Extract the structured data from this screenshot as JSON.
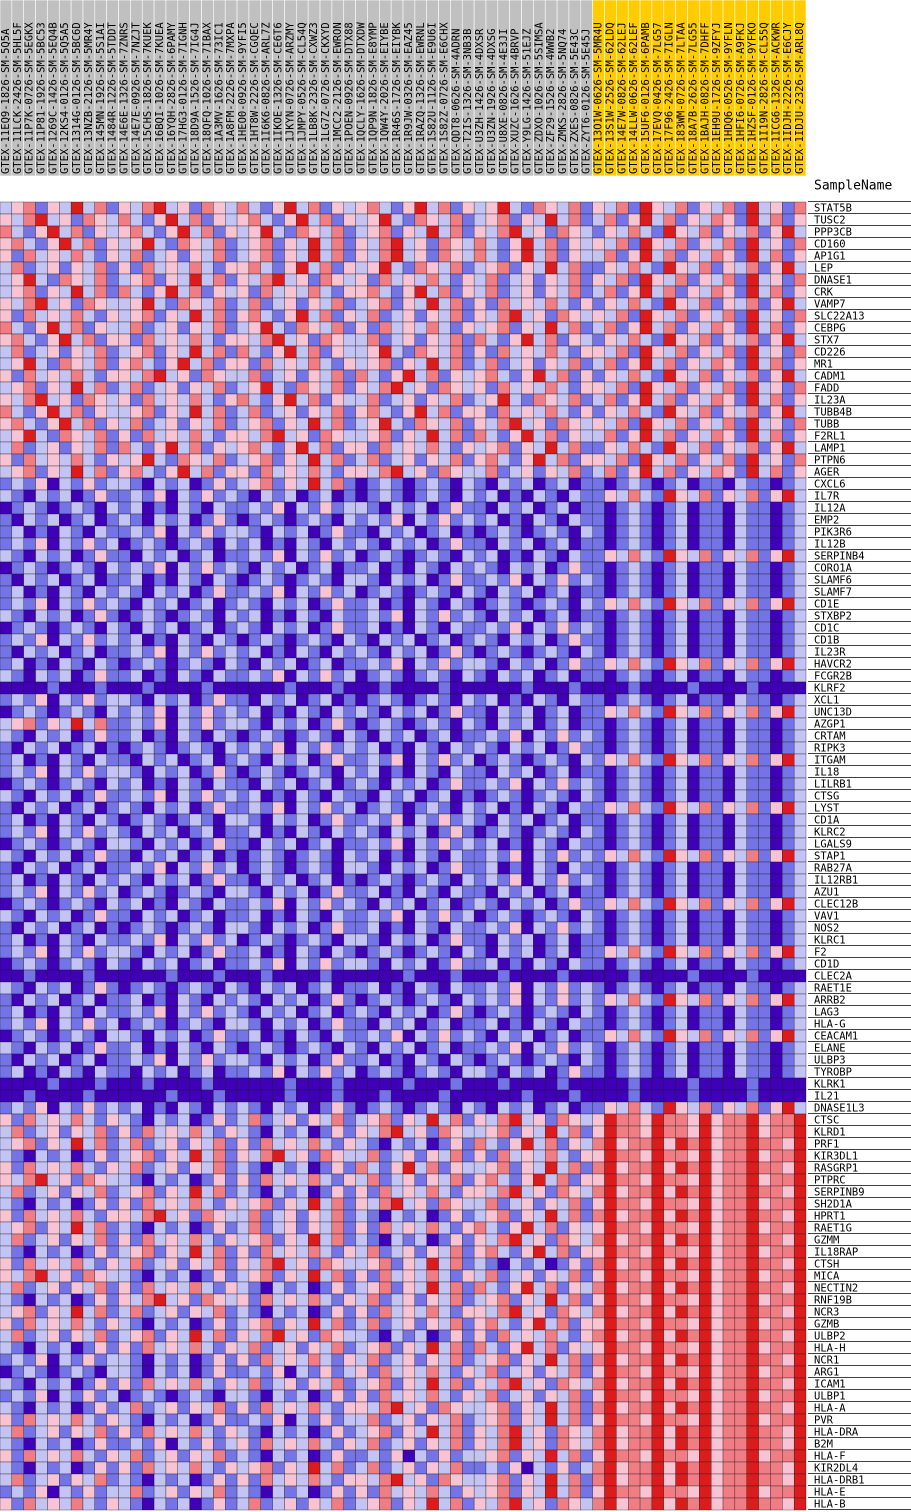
{
  "heatmap": {
    "type": "heatmap",
    "sample_axis_label": "SampleName",
    "colors": [
      "#3f00b8",
      "#7474e6",
      "#c4c4f4",
      "#f8c4d4",
      "#f07c84",
      "#dc1c1c"
    ],
    "group_colors": [
      "#c0c0c0",
      "#ffcc00"
    ],
    "samples": [
      "GTEX-11EQ9-1826-SM-5Q5A",
      "GTEX-11LCK-2426-SM-5HL5F",
      "GTEX-11P7K-0726-SM-5EGKX",
      "GTEX-11P81-1926-SM-5BC53",
      "GTEX-1269C-1426-SM-5EQ4B",
      "GTEX-12KS4-0126-SM-5Q5A5",
      "GTEX-1314G-0126-SM-5BC6D",
      "GTEX-13NZB-2126-SM-5MR4Y",
      "GTEX-145MN-1926-SM-5S1AI",
      "GTEX-1484R-1226-SM-5TDDT",
      "GTEX-14E6E-1326-SM-7ZNRS",
      "GTEX-14E7E-0926-SM-7NZJT",
      "GTEX-15CHS-1826-SM-7KUEK",
      "GTEX-16BQI-1026-SM-7KUEA",
      "GTEX-16YQH-2826-SM-6PAMY",
      "GTEX-17HG3-0126-SM-7IGNH",
      "GTEX-18D9A-1526-SM-7IG4J",
      "GTEX-18QFQ-1026-SM-7IBAX",
      "GTEX-1A3MV-1626-SM-73IC1",
      "GTEX-1A8FM-2226-SM-7MXPA",
      "GTEX-1HEO0-0926-SM-9YFI5",
      "GTEX-1HT8W-2226-SM-CGQEC",
      "GTEX-1I6K6-0826-SM-ARL7Z",
      "GTEX-1IKOE-1326-SM-CE6T6",
      "GTEX-1JKYN-0726-SM-ARZMY",
      "GTEX-1JMPY-0526-SM-CL54Q",
      "GTEX-1LB8K-2326-SM-CXWZ3",
      "GTEX-1LG7Z-0726-SM-CKXYD",
      "GTEX-1MCC2-2126-SM-EWRON",
      "GTEX-1POEN-0926-SM-DTX88",
      "GTEX-1QCLY-1626-SM-DTXDW",
      "GTEX-1QP9N-1826-SM-E8YMP",
      "GTEX-1QW4Y-2026-SM-EIYBE",
      "GTEX-1R46S-1726-SM-EIYBK",
      "GTEX-1R9JW-0326-SM-EAZ45",
      "GTEX-1RAZQ-1326-SM-EWRNL",
      "GTEX-1S82U-1126-SM-E9U6I",
      "GTEX-1S82Z-0726-SM-E6CHX",
      "GTEX-QDT8-0626-SM-4ADRN",
      "GTEX-T2IS-1326-SM-3NB3B",
      "GTEX-U3ZH-1426-SM-4DXSR",
      "GTEX-U3ZN-1926-SM-4DXSG",
      "GTEX-U8XE-0826-SM-4E3JI",
      "GTEX-XUZC-1626-SM-4BRVP",
      "GTEX-Y9LG-1426-SM-51EJZ",
      "GTEX-ZDXO-1026-SM-5SIMSA",
      "GTEX-ZF29-1526-SM-4WWB2",
      "GTEX-ZMKS-2826-SM-5NQ74",
      "GTEX-ZXES-0826-SM-5E43C",
      "GTEX-ZYT6-0126-SM-5E45J",
      "GTEX-13O1W-0626-SM-5MR4U",
      "GTEX-13S1W-2526-SM-62LDQ",
      "GTEX-14E7W-0826-SM-62LEJ",
      "GTEX-14LLW-0626-SM-62LEF",
      "GTEX-15UF6-0126-SM-6PAMB",
      "GTEX-17EVQ-0426-SM-7LG57",
      "GTEX-17F96-2426-SM-7IGLN",
      "GTEX-183WM-0726-SM-7LTAA",
      "GTEX-18A7B-2626-SM-7LG55",
      "GTEX-1BAJH-0826-SM-7DHFF",
      "GTEX-1EH9U-1726-SM-9ZFYJ",
      "GTEX-1HDQ6-0526-SM-9YFLN",
      "GTEX-1HFI6-0726-SM-A9FKJ",
      "GTEX-1HZSF-0126-SM-9YFKO",
      "GTEX-1I19N-2826-SM-CL55Q",
      "GTEX-1ICG6-1326-SM-ACKWR",
      "GTEX-1IDJH-2226-SM-E6CJY",
      "GTEX-1IDJU-2326-SM-ARL8Q"
    ],
    "sample_groups": [
      0,
      0,
      0,
      0,
      0,
      0,
      0,
      0,
      0,
      0,
      0,
      0,
      0,
      0,
      0,
      0,
      0,
      0,
      0,
      0,
      0,
      0,
      0,
      0,
      0,
      0,
      0,
      0,
      0,
      0,
      0,
      0,
      0,
      0,
      0,
      0,
      0,
      0,
      0,
      0,
      0,
      0,
      0,
      0,
      0,
      0,
      0,
      0,
      0,
      0,
      1,
      1,
      1,
      1,
      1,
      1,
      1,
      1,
      1,
      1,
      1,
      1,
      1,
      1,
      1,
      1,
      1,
      1
    ],
    "genes": [
      "STAT5B",
      "TUSC2",
      "PPP3CB",
      "CD160",
      "AP1G1",
      "LEP",
      "DNASE1",
      "CRK",
      "VAMP7",
      "SLC22A13",
      "CEBPG",
      "STX7",
      "CD226",
      "MR1",
      "CADM1",
      "FADD",
      "IL23A",
      "TUBB4B",
      "TUBB",
      "F2RL1",
      "LAMP1",
      "PTPN6",
      "AGER",
      "CXCL6",
      "IL7R",
      "IL12A",
      "EMP2",
      "PIK3R6",
      "IL12B",
      "SERPINB4",
      "CORO1A",
      "SLAMF6",
      "SLAMF7",
      "CD1E",
      "STXBP2",
      "CD1C",
      "CD1B",
      "IL23R",
      "HAVCR2",
      "FCGR2B",
      "KLRF2",
      "XCL1",
      "UNC13D",
      "AZGP1",
      "CRTAM",
      "RIPK3",
      "ITGAM",
      "IL18",
      "LILRB1",
      "CTSG",
      "LYST",
      "CD1A",
      "KLRC2",
      "LGALS9",
      "STAP1",
      "RAB27A",
      "IL12RB1",
      "AZU1",
      "CLEC12B",
      "VAV1",
      "NOS2",
      "KLRC1",
      "F2",
      "CD1D",
      "CLEC2A",
      "RAET1E",
      "ARRB2",
      "LAG3",
      "HLA-G",
      "CEACAM1",
      "ELANE",
      "ULBP3",
      "TYROBP",
      "KLRK1",
      "IL21",
      "DNASE1L3",
      "CTSC",
      "KLRD1",
      "PRF1",
      "KIR3DL1",
      "RASGRP1",
      "PTPRC",
      "SERPINB9",
      "SH2D1A",
      "HPRT1",
      "RAET1G",
      "GZMM",
      "IL18RAP",
      "CTSH",
      "MICA",
      "NECTIN2",
      "RNF19B",
      "NCR3",
      "GZMB",
      "ULBP2",
      "HLA-H",
      "NCR1",
      "ARG1",
      "ICAM1",
      "ULBP1",
      "HLA-A",
      "PVR",
      "HLA-DRA",
      "B2M",
      "HLA-F",
      "KIR2DL4",
      "HLA-DRB1",
      "HLA-E",
      "HLA-B"
    ],
    "levels": [
      "23413252413245231432421352413234213524132352143241324153241324152314",
      "32452314324213524132342135241323521432412341325241241352413243152413",
      "42135241323421352413235214324123413252413245231432132421532413241352",
      "34213524132352143241234132524132452314324213524132324153241324152314",
      "31423242132412313241234132524132452314324213524132241352413243152413",
      "24123132413142324213342135241323521432412341325241132421532413241352",
      "23521432412341325241324523143231423242132412313241324153241324152314",
      "23413252414213524132314232421334213524132412313241241352413243152413",
      "32452314322352143241241231324123413252413142324213132421532413241352",
      "31423242132341325241342135241324123132413245231432324153241324152314",
      "42135241322412313241235214324131423242132341325241241352413243152413",
      "34213524133142324213324523143224123132414213524132132421532413241352",
      "24123132412341325241421352413223521432413142324213324153241324152314",
      "23521432413421352413314232421323413252412412313241241352413243152413",
      "31423242133245231432241231324142135241323421352413132421532413241352",
      "23413252412412313241235214324132452314323142324213324153241324152314",
      "32452314323142324213421352413224123132412352143241241352413243152413",
      "42135241322341325241241231324134213524133142324213132421532413241352",
      "34213524132412313241234132524123521432413245231432324153241324152314",
      "23521432413142324213324523143223413252414213524132241352413243152413",
      "24123132414213524132342135241331423242132341325241132421532413241352",
      "31423242132352143241234132524124123132413421352413324153241324152314",
      "23413252413421352413314232421332452314322412313241241352413243152413",
      "12130213122102120131234132524101210121021021201201101210120110211012",
      "21021201311213021312102120120101210121021201021021132421532413241352",
      "01210121021201021021121302131221021201311021201201101210120110211012",
      "10212012012102120131012101210212130213121201021021101210120110211012",
      "12010210211213021312210212013110212012010121012102101210120110211012",
      "12130213120121012102120102102121021201311021201201101210120110211012",
      "21021201311021201201121302131201210121021201021021132421532413241352",
      "01210121021213021312102120120112010210212102120131101210120110211012",
      "10212012011201021021012101210221021201311213021312101210120110211012",
      "12010210212102120131121302131201210121021021201201101210120110211012",
      "12130213121021201201210212013112010210210121012102132421532413241352",
      "21021201310121012102120102102112130213121021201201101210120110211012",
      "01210121021021201201210212013112010210211213021312101210120110211012",
      "12130213121201021021012101210210212012012102120131101210120110211012",
      "10212012011213021312120102102121021201310121012102101210120110211012",
      "12010210210121012102102120120112130213122102120131132421532413241352",
      "21021201311201021021121302131201210121021021201201101210120110211012",
      "00001000100010000100000010001000100001000000100010000100001000010000",
      "12130213122102120131102120120101210121021201021021101210120110211012",
      "01210121021213021312120102102121021201311021201201132421532413241352",
      "23413252411213021312210212013101210121021021201201101210120110211012",
      "21021201311201021021012101210210212012011213021312101210120110211012",
      "10212012010121012102121302131212010210212102120131101210120110211012",
      "12010210211021201201210212013112130213120121012102132421532413241352",
      "12130213122102120131012101210212010210211021201201101210120110211012",
      "01210121021201021021102120120121021201311213021312101210120110211012",
      "21021201311213021312120102102110212012010121012102101210120110211012",
      "10212012012102120131121302131201210121021201021021132421532413241352",
      "12010210210121012102210212013112130213121021201201101210120110211012",
      "12130213121021201201120102102121021201310121012102101210120110211012",
      "01210121022102120131102120120112130213121201021021101210120110211012",
      "21021201311021201201012101210212010210211213021312132421532413241352",
      "10212012011213021312012101210221021201311201021021101210120110211012",
      "12010210212102120131102120120101210121021213021312101210120110211012",
      "12130213120121012102210212013112010210211021201201101210120110211012",
      "01210121021201021021121302131210212012012102120131132421532413241352",
      "21021201311021201201120102102112130213120121012102101210120110211012",
      "10212012010121012102210212013112010210211213021312101210120110211012",
      "12010210211213021312012101210221021201311021201201101210120110211012",
      "12130213122102120131120102102101210121021021201201132421532413241352",
      "01210121021021201201121302131221021201311201021021101210120110211012",
      "00100001000000100010001000010000001000100010000100000100001000010000",
      "21021201310121012102102120120112010210211213021312101210120110211012",
      "10212012011201021021210212013101210121021213021312132421532413241352",
      "12010210211213021312102120120121021201310121012102101210120110211012",
      "12130213120121012102210212013110212012011201021021101210120110211012",
      "01210121022102120131120102102112130213121021201201132421532413241352",
      "21021201311201021021012101210210212012011213021312101210120110211012",
      "10212012011213021312210212013112010210210121012102101210120110211012",
      "12010210211021201201121302131201210121022102120131101210120110211012",
      "00001000100010000100000010001000001000100010000100000100001000010000",
      "00100001000000100010000010001000100001000000100010000100001000010000",
      "12130213121201021021210212013101210121021021201201132421532413241352",
      "31423242132102120131241231324123413252413245231432354435443534453445",
      "24123132413142324213210212013132452314322341325241354435443534453445",
      "23413252412412313241314232421321021201314213524132453445354534454435",
      "21021201312341325241324523143224123132413142324213354435443534453445",
      "31423242132412313241210212013142135241322341325241453445354534454435",
      "32452314322102120131314232421324123132413421352413354435443534453445",
      "24123132412341325241210212013131423242133245231432453445354534454435",
      "21021201313142324213234132524132452314322412313241354435443534453445",
      "31423242133245231432241231324121021201312341325241453445354534454435",
      "23413252412102120131241231324131423242134213524132354435443534453445",
      "24123132413142324213234132524121021201313245231432453445354534454435",
      "21021201312341325241314232421324123132413421352413354435443534453445",
      "31423242132412313241324523143223413252412102120131453445354534454435",
      "32452314322102120131234132524131423242132412313241354435443534453445",
      "24123132413142324213210212013123413252414213524132453445354534454435",
      "21021201313245231432314232421324123132412341325241354435443534453445",
      "23413252412412313241210212013131423242133245231432453445354534454435",
      "31423242132102120131234132524124123132413421352413354435443534453445",
      "24123132412341325241324523143221021201313142324213453445354534454435",
      "21021201313142324213241231324123413252414213524132354435443534453445",
      "12130213122102120131314232421324123132412341325241453445354534454435",
      "01210121022102120131121302131231423242132412313241354435443534453445",
      "21021201313142324213241231324123413252413245231432453445354534454435",
      "12130213120121012102210212013131423242132412313241354435443534453445",
      "21021201312412313241314232421332452314322341325241453445354534454435",
      "31423242132102120131121302131224123132412341325241354435443534453445",
      "24123132413142324213210212013123413252413245231432453445354534454435",
      "21021201311213021312314232421324123132413245231432453445354534454435",
      "31423242132412313241210212013112130213122341325241354435443534453445",
      "21021201313142324213234132524124123132411213021312453445354534454435",
      "24123132412102120131314232421332452314322341325241453445354534454435",
      "12130213122412313241210212013131423242132341325241354435443534453445",
      "31423242132102120131241231324123413252413245231432453445354534454435"
    ]
  }
}
